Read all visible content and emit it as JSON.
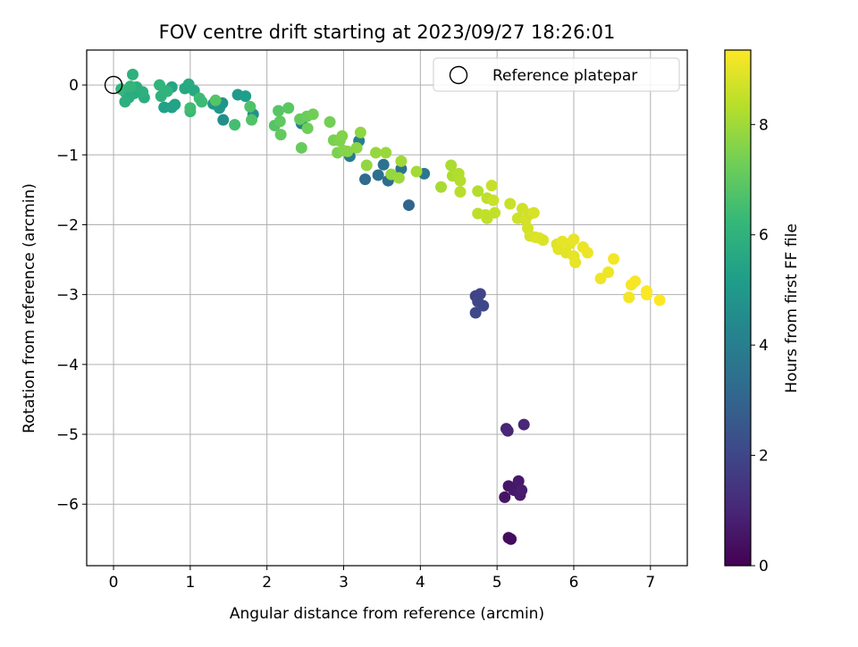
{
  "chart_data": {
    "type": "scatter",
    "title": "FOV centre drift starting at 2023/09/27 18:26:01",
    "xlabel": "Angular distance from reference (arcmin)",
    "ylabel": "Rotation from reference (arcmin)",
    "xlim": [
      -0.35,
      7.48
    ],
    "ylim": [
      -6.88,
      0.5
    ],
    "x_ticks": [
      0,
      1,
      2,
      3,
      4,
      5,
      6,
      7
    ],
    "y_ticks": [
      0,
      -1,
      -2,
      -3,
      -4,
      -5,
      -6
    ],
    "x_tick_labels": [
      "0",
      "1",
      "2",
      "3",
      "4",
      "5",
      "6",
      "7"
    ],
    "y_tick_labels": [
      "0",
      "−1",
      "−2",
      "−3",
      "−4",
      "−5",
      "−6"
    ],
    "grid": true,
    "colormap": "viridis",
    "colorbar": {
      "label": "Hours from first FF file",
      "range": [
        0,
        9.35
      ],
      "ticks": [
        0,
        2,
        4,
        6,
        8
      ],
      "tick_labels": [
        "0",
        "2",
        "4",
        "6",
        "8"
      ]
    },
    "legend": {
      "position": "top-right",
      "entries": [
        "Reference platepar"
      ]
    },
    "reference_point": {
      "x": 0,
      "y": 0
    },
    "points": [
      {
        "x": 5.18,
        "y": -6.5,
        "c": 0.25
      },
      {
        "x": 5.15,
        "y": -6.48,
        "c": 0.3
      },
      {
        "x": 5.1,
        "y": -5.9,
        "c": 0.5
      },
      {
        "x": 5.15,
        "y": -5.74,
        "c": 0.55
      },
      {
        "x": 5.22,
        "y": -5.8,
        "c": 0.6
      },
      {
        "x": 5.28,
        "y": -5.67,
        "c": 0.65
      },
      {
        "x": 5.3,
        "y": -5.87,
        "c": 0.7
      },
      {
        "x": 5.32,
        "y": -5.8,
        "c": 0.75
      },
      {
        "x": 5.12,
        "y": -4.92,
        "c": 0.95
      },
      {
        "x": 5.14,
        "y": -4.95,
        "c": 1.0
      },
      {
        "x": 5.35,
        "y": -4.86,
        "c": 1.05
      },
      {
        "x": 4.72,
        "y": -3.02,
        "c": 1.9
      },
      {
        "x": 4.78,
        "y": -2.99,
        "c": 1.95
      },
      {
        "x": 4.75,
        "y": -3.1,
        "c": 2.0
      },
      {
        "x": 4.82,
        "y": -3.16,
        "c": 2.05
      },
      {
        "x": 4.72,
        "y": -3.26,
        "c": 2.1
      },
      {
        "x": 3.85,
        "y": -1.72,
        "c": 3.0
      },
      {
        "x": 3.28,
        "y": -1.35,
        "c": 3.2
      },
      {
        "x": 3.58,
        "y": -1.37,
        "c": 3.3
      },
      {
        "x": 3.45,
        "y": -1.29,
        "c": 3.4
      },
      {
        "x": 3.52,
        "y": -1.14,
        "c": 3.5
      },
      {
        "x": 3.75,
        "y": -1.2,
        "c": 3.6
      },
      {
        "x": 4.05,
        "y": -1.27,
        "c": 3.7
      },
      {
        "x": 3.08,
        "y": -1.02,
        "c": 3.9
      },
      {
        "x": 3.2,
        "y": -0.8,
        "c": 4.0
      },
      {
        "x": 2.45,
        "y": -0.55,
        "c": 4.1
      },
      {
        "x": 1.43,
        "y": -0.5,
        "c": 4.6
      },
      {
        "x": 1.42,
        "y": -0.26,
        "c": 4.8
      },
      {
        "x": 1.3,
        "y": -0.27,
        "c": 4.9
      },
      {
        "x": 1.38,
        "y": -0.33,
        "c": 4.95
      },
      {
        "x": 1.82,
        "y": -0.42,
        "c": 4.7
      },
      {
        "x": 1.62,
        "y": -0.14,
        "c": 5.1
      },
      {
        "x": 1.72,
        "y": -0.16,
        "c": 5.2
      },
      {
        "x": 0.66,
        "y": -0.32,
        "c": 5.3
      },
      {
        "x": 0.76,
        "y": -0.32,
        "c": 5.35
      },
      {
        "x": 0.8,
        "y": -0.28,
        "c": 5.4
      },
      {
        "x": 0.76,
        "y": -0.03,
        "c": 5.5
      },
      {
        "x": 0.93,
        "y": -0.05,
        "c": 5.6
      },
      {
        "x": 0.98,
        "y": 0.01,
        "c": 5.7
      },
      {
        "x": 1.05,
        "y": -0.08,
        "c": 5.6
      },
      {
        "x": 0.4,
        "y": -0.18,
        "c": 5.8
      },
      {
        "x": 0.38,
        "y": -0.1,
        "c": 5.9
      },
      {
        "x": 0.27,
        "y": -0.12,
        "c": 5.75
      },
      {
        "x": 0.3,
        "y": -0.03,
        "c": 5.85
      },
      {
        "x": 0.25,
        "y": 0.15,
        "c": 5.9
      },
      {
        "x": 0.15,
        "y": -0.1,
        "c": 5.95
      },
      {
        "x": 0.2,
        "y": -0.18,
        "c": 5.8
      },
      {
        "x": 0.15,
        "y": -0.24,
        "c": 5.85
      },
      {
        "x": 0.6,
        "y": 0.0,
        "c": 6.1
      },
      {
        "x": 0.62,
        "y": -0.16,
        "c": 6.0
      },
      {
        "x": 0.7,
        "y": -0.09,
        "c": 6.05
      },
      {
        "x": 0.1,
        "y": -0.06,
        "c": 6.2
      },
      {
        "x": 0.22,
        "y": -0.02,
        "c": 6.15
      },
      {
        "x": 1.0,
        "y": -0.38,
        "c": 6.3
      },
      {
        "x": 1.12,
        "y": -0.19,
        "c": 6.4
      },
      {
        "x": 1.15,
        "y": -0.24,
        "c": 6.35
      },
      {
        "x": 1.58,
        "y": -0.57,
        "c": 6.5
      },
      {
        "x": 1.0,
        "y": -0.33,
        "c": 6.45
      },
      {
        "x": 1.78,
        "y": -0.31,
        "c": 6.7
      },
      {
        "x": 1.8,
        "y": -0.5,
        "c": 6.75
      },
      {
        "x": 1.33,
        "y": -0.22,
        "c": 6.8
      },
      {
        "x": 2.1,
        "y": -0.58,
        "c": 6.8
      },
      {
        "x": 2.15,
        "y": -0.37,
        "c": 6.85
      },
      {
        "x": 2.28,
        "y": -0.33,
        "c": 6.9
      },
      {
        "x": 2.17,
        "y": -0.52,
        "c": 7.0
      },
      {
        "x": 2.18,
        "y": -0.71,
        "c": 7.05
      },
      {
        "x": 2.43,
        "y": -0.49,
        "c": 7.1
      },
      {
        "x": 2.45,
        "y": -0.9,
        "c": 7.15
      },
      {
        "x": 2.52,
        "y": -0.45,
        "c": 7.2
      },
      {
        "x": 2.53,
        "y": -0.62,
        "c": 7.25
      },
      {
        "x": 2.6,
        "y": -0.42,
        "c": 7.3
      },
      {
        "x": 2.82,
        "y": -0.53,
        "c": 7.35
      },
      {
        "x": 2.87,
        "y": -0.79,
        "c": 7.4
      },
      {
        "x": 2.92,
        "y": -0.97,
        "c": 7.45
      },
      {
        "x": 2.95,
        "y": -0.8,
        "c": 7.5
      },
      {
        "x": 2.98,
        "y": -0.73,
        "c": 7.55
      },
      {
        "x": 3.0,
        "y": -0.94,
        "c": 7.6
      },
      {
        "x": 3.05,
        "y": -0.95,
        "c": 7.65
      },
      {
        "x": 3.17,
        "y": -0.9,
        "c": 7.7
      },
      {
        "x": 3.22,
        "y": -0.68,
        "c": 7.75
      },
      {
        "x": 3.3,
        "y": -1.15,
        "c": 7.8
      },
      {
        "x": 3.42,
        "y": -0.97,
        "c": 7.85
      },
      {
        "x": 3.55,
        "y": -0.97,
        "c": 7.9
      },
      {
        "x": 3.62,
        "y": -1.28,
        "c": 7.85
      },
      {
        "x": 3.72,
        "y": -1.33,
        "c": 7.95
      },
      {
        "x": 3.75,
        "y": -1.09,
        "c": 8.0
      },
      {
        "x": 3.95,
        "y": -1.24,
        "c": 8.05
      },
      {
        "x": 4.27,
        "y": -1.46,
        "c": 8.1
      },
      {
        "x": 4.4,
        "y": -1.15,
        "c": 8.15
      },
      {
        "x": 4.42,
        "y": -1.3,
        "c": 8.2
      },
      {
        "x": 4.5,
        "y": -1.27,
        "c": 8.25
      },
      {
        "x": 4.52,
        "y": -1.37,
        "c": 8.3
      },
      {
        "x": 4.52,
        "y": -1.53,
        "c": 8.35
      },
      {
        "x": 4.75,
        "y": -1.52,
        "c": 8.3
      },
      {
        "x": 4.75,
        "y": -1.84,
        "c": 8.4
      },
      {
        "x": 4.87,
        "y": -1.62,
        "c": 8.45
      },
      {
        "x": 4.85,
        "y": -1.86,
        "c": 8.5
      },
      {
        "x": 4.87,
        "y": -1.91,
        "c": 8.45
      },
      {
        "x": 4.93,
        "y": -1.44,
        "c": 8.55
      },
      {
        "x": 4.95,
        "y": -1.65,
        "c": 8.6
      },
      {
        "x": 4.97,
        "y": -1.83,
        "c": 8.5
      },
      {
        "x": 5.17,
        "y": -1.7,
        "c": 8.6
      },
      {
        "x": 5.27,
        "y": -1.91,
        "c": 8.65
      },
      {
        "x": 5.33,
        "y": -1.77,
        "c": 8.7
      },
      {
        "x": 5.37,
        "y": -1.93,
        "c": 8.75
      },
      {
        "x": 5.42,
        "y": -1.85,
        "c": 8.7
      },
      {
        "x": 5.48,
        "y": -1.83,
        "c": 8.8
      },
      {
        "x": 5.4,
        "y": -2.05,
        "c": 8.75
      },
      {
        "x": 5.43,
        "y": -2.16,
        "c": 8.8
      },
      {
        "x": 5.5,
        "y": -2.18,
        "c": 8.85
      },
      {
        "x": 5.55,
        "y": -2.19,
        "c": 8.9
      },
      {
        "x": 5.6,
        "y": -2.22,
        "c": 8.85
      },
      {
        "x": 5.78,
        "y": -2.28,
        "c": 8.9
      },
      {
        "x": 5.8,
        "y": -2.35,
        "c": 8.95
      },
      {
        "x": 5.85,
        "y": -2.24,
        "c": 9.0
      },
      {
        "x": 5.9,
        "y": -2.4,
        "c": 8.95
      },
      {
        "x": 5.95,
        "y": -2.27,
        "c": 9.0
      },
      {
        "x": 6.0,
        "y": -2.21,
        "c": 9.05
      },
      {
        "x": 6.0,
        "y": -2.45,
        "c": 9.0
      },
      {
        "x": 6.02,
        "y": -2.54,
        "c": 9.05
      },
      {
        "x": 6.12,
        "y": -2.32,
        "c": 9.1
      },
      {
        "x": 6.18,
        "y": -2.4,
        "c": 9.1
      },
      {
        "x": 6.35,
        "y": -2.77,
        "c": 9.15
      },
      {
        "x": 6.45,
        "y": -2.68,
        "c": 9.15
      },
      {
        "x": 6.52,
        "y": -2.49,
        "c": 9.2
      },
      {
        "x": 6.72,
        "y": -3.04,
        "c": 9.2
      },
      {
        "x": 6.75,
        "y": -2.86,
        "c": 9.25
      },
      {
        "x": 6.8,
        "y": -2.81,
        "c": 9.25
      },
      {
        "x": 6.95,
        "y": -3.0,
        "c": 9.3
      },
      {
        "x": 6.95,
        "y": -2.95,
        "c": 9.3
      },
      {
        "x": 7.12,
        "y": -3.08,
        "c": 9.35
      }
    ]
  }
}
